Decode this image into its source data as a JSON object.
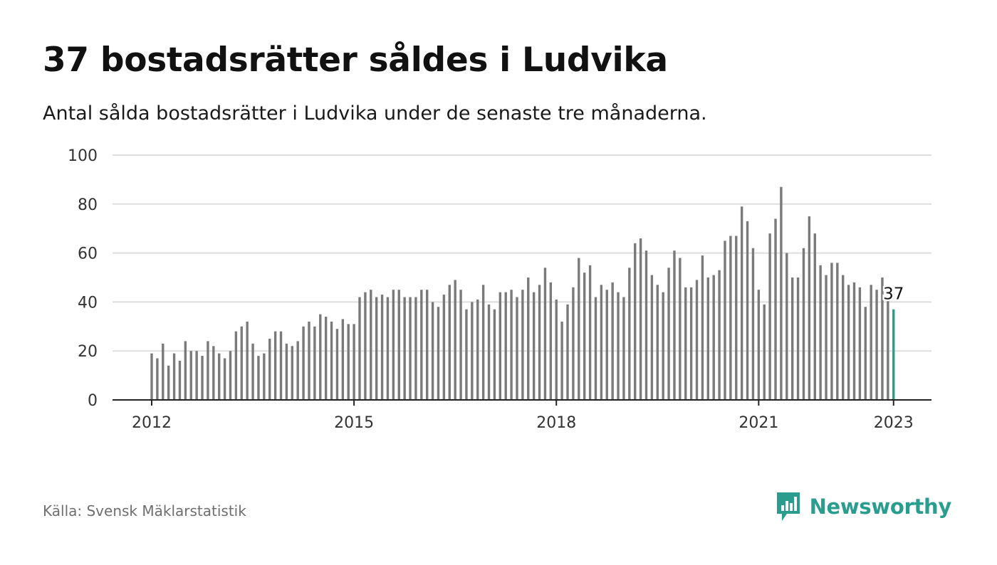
{
  "header": {
    "title": "37 bostadsrätter såldes i Ludvika",
    "subtitle": "Antal sålda bostadsrätter i Ludvika under de senaste tre månaderna."
  },
  "footer": {
    "source": "Källa: Svensk Mäklarstatistik",
    "brand": "Newsworthy",
    "brand_icon": "bar-chart-speech-bubble-icon"
  },
  "colors": {
    "bar": "#7a7a7a",
    "highlight": "#2a9d8f",
    "grid": "#dedede",
    "axis": "#222222",
    "tick_text": "#333333"
  },
  "chart_data": {
    "type": "bar",
    "title": "37 bostadsrätter såldes i Ludvika",
    "subtitle": "Antal sålda bostadsrätter i Ludvika under de senaste tre månaderna.",
    "xlabel": "",
    "ylabel": "",
    "ylim": [
      0,
      100
    ],
    "yticks": [
      0,
      20,
      40,
      60,
      80,
      100
    ],
    "xticks": [
      "2012",
      "2015",
      "2018",
      "2021",
      "2023"
    ],
    "grid": true,
    "legend": "none",
    "start": "2012-01",
    "end": "2023-01",
    "highlight_label": "37",
    "values": [
      19,
      17,
      23,
      14,
      19,
      16,
      24,
      20,
      20,
      18,
      24,
      22,
      19,
      17,
      20,
      28,
      30,
      32,
      23,
      18,
      19,
      25,
      28,
      28,
      23,
      22,
      24,
      30,
      32,
      30,
      35,
      34,
      32,
      29,
      33,
      31,
      31,
      42,
      44,
      45,
      42,
      43,
      42,
      45,
      45,
      42,
      42,
      42,
      45,
      45,
      40,
      38,
      43,
      47,
      49,
      45,
      37,
      40,
      41,
      47,
      39,
      37,
      44,
      44,
      45,
      42,
      45,
      50,
      44,
      47,
      54,
      48,
      41,
      32,
      39,
      46,
      58,
      52,
      55,
      42,
      47,
      45,
      48,
      44,
      42,
      54,
      64,
      66,
      61,
      51,
      47,
      44,
      54,
      61,
      58,
      46,
      46,
      49,
      59,
      50,
      51,
      53,
      65,
      67,
      67,
      79,
      73,
      62,
      45,
      39,
      68,
      74,
      87,
      60,
      50,
      50,
      62,
      75,
      68,
      55,
      51,
      56,
      56,
      51,
      47,
      48,
      46,
      38,
      47,
      45,
      50,
      41,
      37
    ]
  }
}
